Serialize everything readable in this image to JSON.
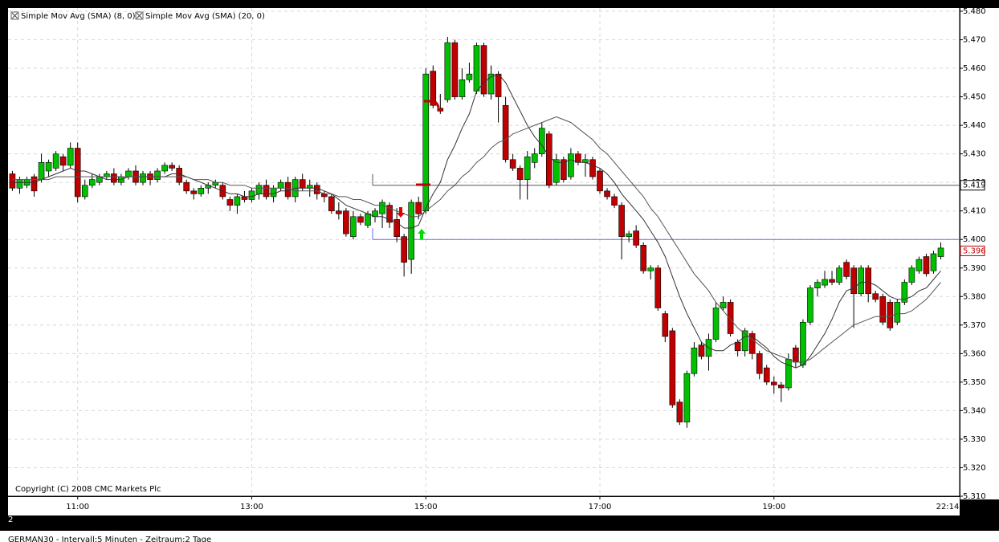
{
  "chart_data": {
    "type": "candlestick",
    "legend": [
      "Simple Mov Avg (SMA) (8, 0)",
      "Simple Mov Avg (SMA) (20, 0)"
    ],
    "copyright": "Copyright (C) 2008 CMC Markets Plc",
    "pane_number": "2",
    "footer": "GERMAN30 - Intervall:5 Minuten - Zeitraum:2 Tage",
    "cursor_time": "22:14",
    "ylim": [
      5.31,
      5.48
    ],
    "yticks": [
      {
        "value": 5.48,
        "label": "5.480"
      },
      {
        "value": 5.47,
        "label": "5.470"
      },
      {
        "value": 5.46,
        "label": "5.460"
      },
      {
        "value": 5.45,
        "label": "5.450"
      },
      {
        "value": 5.44,
        "label": "5.440"
      },
      {
        "value": 5.43,
        "label": "5.430"
      },
      {
        "value": 5.42,
        "label": "5.420"
      },
      {
        "value": 5.41,
        "label": "5.410"
      },
      {
        "value": 5.4,
        "label": "5.400"
      },
      {
        "value": 5.39,
        "label": "5.390"
      },
      {
        "value": 5.38,
        "label": "5.380"
      },
      {
        "value": 5.37,
        "label": "5.370"
      },
      {
        "value": 5.36,
        "label": "5.360"
      },
      {
        "value": 5.35,
        "label": "5.350"
      },
      {
        "value": 5.34,
        "label": "5.340"
      },
      {
        "value": 5.33,
        "label": "5.330"
      },
      {
        "value": 5.32,
        "label": "5.320"
      },
      {
        "value": 5.31,
        "label": "5.310"
      }
    ],
    "xlim": [
      "10:12",
      "21:08"
    ],
    "xticks": [
      "11:00",
      "13:00",
      "15:00",
      "17:00",
      "19:00"
    ],
    "grid": true,
    "levels": [
      {
        "value": 5.419,
        "label": "5.419",
        "color": "#555555"
      },
      {
        "value": 5.4,
        "color": "#6a6af0"
      }
    ],
    "last_price": {
      "value": 5.396,
      "label": "5.396",
      "color": "#c00000"
    },
    "up_color": "#00c000",
    "down_color": "#c00000",
    "x": [
      "10:15",
      "10:20",
      "10:25",
      "10:30",
      "10:35",
      "10:40",
      "10:45",
      "10:50",
      "10:55",
      "11:00",
      "11:05",
      "11:10",
      "11:15",
      "11:20",
      "11:25",
      "11:30",
      "11:35",
      "11:40",
      "11:45",
      "11:50",
      "11:55",
      "12:00",
      "12:05",
      "12:10",
      "12:15",
      "12:20",
      "12:25",
      "12:30",
      "12:35",
      "12:40",
      "12:45",
      "12:50",
      "12:55",
      "13:00",
      "13:05",
      "13:10",
      "13:15",
      "13:20",
      "13:25",
      "13:30",
      "13:35",
      "13:40",
      "13:45",
      "13:50",
      "13:55",
      "14:00",
      "14:05",
      "14:10",
      "14:15",
      "14:20",
      "14:25",
      "14:30",
      "14:35",
      "14:40",
      "14:45",
      "14:50",
      "14:55",
      "15:00",
      "15:05",
      "15:10",
      "15:15",
      "15:20",
      "15:25",
      "15:30",
      "15:35",
      "15:40",
      "15:45",
      "15:50",
      "15:55",
      "16:00",
      "16:05",
      "16:10",
      "16:15",
      "16:20",
      "16:25",
      "16:30",
      "16:35",
      "16:40",
      "16:45",
      "16:50",
      "16:55",
      "17:00",
      "17:05",
      "17:10",
      "17:15",
      "17:20",
      "17:25",
      "17:30",
      "17:35",
      "17:40",
      "17:45",
      "17:50",
      "17:55",
      "18:00",
      "18:05",
      "18:10",
      "18:15",
      "18:20",
      "18:25",
      "18:30",
      "18:35",
      "18:40",
      "18:45",
      "18:50",
      "18:55",
      "19:00",
      "19:05",
      "19:10",
      "19:15",
      "19:20",
      "19:25",
      "19:30",
      "19:35",
      "19:40",
      "19:45",
      "19:50",
      "19:55",
      "20:00",
      "20:05",
      "20:10",
      "20:15",
      "20:20",
      "20:25",
      "20:30",
      "20:35",
      "20:40",
      "20:45",
      "20:50",
      "20:55"
    ],
    "candles": [
      [
        5.423,
        5.424,
        5.417,
        5.418
      ],
      [
        5.418,
        5.422,
        5.416,
        5.421
      ],
      [
        5.419,
        5.422,
        5.418,
        5.421
      ],
      [
        5.422,
        5.423,
        5.415,
        5.417
      ],
      [
        5.421,
        5.43,
        5.42,
        5.427
      ],
      [
        5.424,
        5.428,
        5.422,
        5.427
      ],
      [
        5.425,
        5.431,
        5.424,
        5.43
      ],
      [
        5.429,
        5.43,
        5.424,
        5.426
      ],
      [
        5.426,
        5.434,
        5.425,
        5.432
      ],
      [
        5.432,
        5.434,
        5.413,
        5.415
      ],
      [
        5.415,
        5.421,
        5.414,
        5.419
      ],
      [
        5.419,
        5.423,
        5.418,
        5.421
      ],
      [
        5.42,
        5.423,
        5.419,
        5.422
      ],
      [
        5.422,
        5.424,
        5.421,
        5.423
      ],
      [
        5.423,
        5.425,
        5.419,
        5.42
      ],
      [
        5.42,
        5.423,
        5.419,
        5.422
      ],
      [
        5.422,
        5.425,
        5.421,
        5.424
      ],
      [
        5.424,
        5.426,
        5.419,
        5.42
      ],
      [
        5.42,
        5.424,
        5.419,
        5.423
      ],
      [
        5.423,
        5.424,
        5.419,
        5.421
      ],
      [
        5.421,
        5.425,
        5.42,
        5.424
      ],
      [
        5.424,
        5.427,
        5.423,
        5.426
      ],
      [
        5.426,
        5.427,
        5.424,
        5.425
      ],
      [
        5.425,
        5.426,
        5.419,
        5.42
      ],
      [
        5.42,
        5.421,
        5.416,
        5.417
      ],
      [
        5.417,
        5.418,
        5.414,
        5.416
      ],
      [
        5.416,
        5.419,
        5.415,
        5.418
      ],
      [
        5.418,
        5.42,
        5.416,
        5.419
      ],
      [
        5.419,
        5.421,
        5.418,
        5.42
      ],
      [
        5.419,
        5.42,
        5.414,
        5.415
      ],
      [
        5.414,
        5.415,
        5.41,
        5.412
      ],
      [
        5.412,
        5.416,
        5.409,
        5.415
      ],
      [
        5.415,
        5.417,
        5.413,
        5.414
      ],
      [
        5.414,
        5.418,
        5.413,
        5.417
      ],
      [
        5.416,
        5.42,
        5.414,
        5.419
      ],
      [
        5.419,
        5.421,
        5.414,
        5.415
      ],
      [
        5.415,
        5.419,
        5.413,
        5.418
      ],
      [
        5.418,
        5.421,
        5.417,
        5.42
      ],
      [
        5.42,
        5.422,
        5.414,
        5.415
      ],
      [
        5.415,
        5.422,
        5.413,
        5.421
      ],
      [
        5.421,
        5.423,
        5.417,
        5.418
      ],
      [
        5.418,
        5.421,
        5.415,
        5.419
      ],
      [
        5.419,
        5.42,
        5.414,
        5.416
      ],
      [
        5.416,
        5.417,
        5.413,
        5.415
      ],
      [
        5.415,
        5.416,
        5.409,
        5.41
      ],
      [
        5.41,
        5.413,
        5.407,
        5.409
      ],
      [
        5.41,
        5.411,
        5.401,
        5.402
      ],
      [
        5.401,
        5.41,
        5.4,
        5.408
      ],
      [
        5.408,
        5.409,
        5.405,
        5.406
      ],
      [
        5.405,
        5.41,
        5.404,
        5.409
      ],
      [
        5.408,
        5.411,
        5.406,
        5.41
      ],
      [
        5.409,
        5.414,
        5.404,
        5.413
      ],
      [
        5.412,
        5.413,
        5.404,
        5.406
      ],
      [
        5.407,
        5.411,
        5.399,
        5.401
      ],
      [
        5.401,
        5.402,
        5.387,
        5.392
      ],
      [
        5.393,
        5.414,
        5.388,
        5.413
      ],
      [
        5.413,
        5.415,
        5.407,
        5.409
      ],
      [
        5.41,
        5.46,
        5.409,
        5.458
      ],
      [
        5.459,
        5.461,
        5.446,
        5.447
      ],
      [
        5.446,
        5.451,
        5.444,
        5.445
      ],
      [
        5.449,
        5.471,
        5.448,
        5.469
      ],
      [
        5.469,
        5.47,
        5.449,
        5.45
      ],
      [
        5.45,
        5.46,
        5.449,
        5.456
      ],
      [
        5.456,
        5.462,
        5.455,
        5.458
      ],
      [
        5.452,
        5.469,
        5.451,
        5.468
      ],
      [
        5.468,
        5.469,
        5.45,
        5.451
      ],
      [
        5.451,
        5.461,
        5.449,
        5.458
      ],
      [
        5.458,
        5.459,
        5.441,
        5.45
      ],
      [
        5.447,
        5.45,
        5.427,
        5.428
      ],
      [
        5.428,
        5.43,
        5.424,
        5.425
      ],
      [
        5.425,
        5.426,
        5.414,
        5.421
      ],
      [
        5.421,
        5.431,
        5.414,
        5.429
      ],
      [
        5.427,
        5.432,
        5.425,
        5.43
      ],
      [
        5.43,
        5.441,
        5.429,
        5.439
      ],
      [
        5.437,
        5.438,
        5.418,
        5.419
      ],
      [
        5.42,
        5.43,
        5.419,
        5.428
      ],
      [
        5.428,
        5.429,
        5.42,
        5.421
      ],
      [
        5.422,
        5.432,
        5.421,
        5.43
      ],
      [
        5.43,
        5.431,
        5.426,
        5.427
      ],
      [
        5.427,
        5.43,
        5.422,
        5.428
      ],
      [
        5.428,
        5.429,
        5.421,
        5.422
      ],
      [
        5.424,
        5.425,
        5.416,
        5.417
      ],
      [
        5.417,
        5.418,
        5.414,
        5.415
      ],
      [
        5.415,
        5.416,
        5.411,
        5.412
      ],
      [
        5.412,
        5.413,
        5.393,
        5.401
      ],
      [
        5.401,
        5.403,
        5.399,
        5.402
      ],
      [
        5.403,
        5.405,
        5.397,
        5.398
      ],
      [
        5.398,
        5.399,
        5.388,
        5.389
      ],
      [
        5.389,
        5.391,
        5.386,
        5.39
      ],
      [
        5.39,
        5.391,
        5.375,
        5.376
      ],
      [
        5.374,
        5.375,
        5.364,
        5.366
      ],
      [
        5.368,
        5.369,
        5.341,
        5.342
      ],
      [
        5.343,
        5.344,
        5.335,
        5.336
      ],
      [
        5.336,
        5.354,
        5.334,
        5.353
      ],
      [
        5.353,
        5.364,
        5.352,
        5.362
      ],
      [
        5.363,
        5.364,
        5.358,
        5.359
      ],
      [
        5.359,
        5.367,
        5.354,
        5.365
      ],
      [
        5.365,
        5.378,
        5.364,
        5.376
      ],
      [
        5.376,
        5.38,
        5.375,
        5.378
      ],
      [
        5.378,
        5.379,
        5.366,
        5.367
      ],
      [
        5.364,
        5.365,
        5.359,
        5.361
      ],
      [
        5.361,
        5.369,
        5.359,
        5.368
      ],
      [
        5.367,
        5.368,
        5.358,
        5.36
      ],
      [
        5.36,
        5.361,
        5.351,
        5.353
      ],
      [
        5.355,
        5.356,
        5.349,
        5.35
      ],
      [
        5.35,
        5.352,
        5.346,
        5.349
      ],
      [
        5.349,
        5.35,
        5.343,
        5.348
      ],
      [
        5.348,
        5.36,
        5.347,
        5.358
      ],
      [
        5.362,
        5.363,
        5.355,
        5.357
      ],
      [
        5.356,
        5.372,
        5.355,
        5.371
      ],
      [
        5.371,
        5.384,
        5.37,
        5.383
      ],
      [
        5.383,
        5.386,
        5.38,
        5.385
      ],
      [
        5.384,
        5.389,
        5.383,
        5.386
      ],
      [
        5.386,
        5.389,
        5.384,
        5.385
      ],
      [
        5.385,
        5.391,
        5.384,
        5.39
      ],
      [
        5.392,
        5.393,
        5.386,
        5.387
      ],
      [
        5.39,
        5.391,
        5.369,
        5.381
      ],
      [
        5.381,
        5.391,
        5.38,
        5.39
      ],
      [
        5.39,
        5.391,
        5.378,
        5.381
      ],
      [
        5.381,
        5.382,
        5.378,
        5.379
      ],
      [
        5.38,
        5.381,
        5.37,
        5.371
      ],
      [
        5.378,
        5.379,
        5.368,
        5.369
      ],
      [
        5.371,
        5.379,
        5.37,
        5.378
      ],
      [
        5.378,
        5.386,
        5.377,
        5.385
      ],
      [
        5.385,
        5.391,
        5.384,
        5.39
      ],
      [
        5.389,
        5.394,
        5.388,
        5.393
      ],
      [
        5.394,
        5.395,
        5.387,
        5.388
      ],
      [
        5.389,
        5.396,
        5.388,
        5.395
      ],
      [
        5.394,
        5.399,
        5.393,
        5.397
      ]
    ],
    "series": [
      {
        "name": "Simple Mov Avg (SMA) (8, 0)",
        "color": "#333333",
        "values": [
          5.42,
          5.42,
          5.42,
          5.42,
          5.421,
          5.422,
          5.423,
          5.424,
          5.425,
          5.424,
          5.424,
          5.423,
          5.422,
          5.421,
          5.421,
          5.421,
          5.422,
          5.422,
          5.422,
          5.422,
          5.422,
          5.422,
          5.423,
          5.423,
          5.422,
          5.421,
          5.42,
          5.419,
          5.418,
          5.417,
          5.416,
          5.416,
          5.415,
          5.415,
          5.416,
          5.416,
          5.416,
          5.417,
          5.417,
          5.418,
          5.418,
          5.418,
          5.418,
          5.417,
          5.416,
          5.414,
          5.412,
          5.411,
          5.41,
          5.409,
          5.408,
          5.408,
          5.407,
          5.406,
          5.404,
          5.404,
          5.405,
          5.411,
          5.416,
          5.42,
          5.428,
          5.433,
          5.439,
          5.444,
          5.452,
          5.455,
          5.457,
          5.458,
          5.455,
          5.45,
          5.445,
          5.44,
          5.436,
          5.433,
          5.429,
          5.427,
          5.427,
          5.428,
          5.427,
          5.427,
          5.426,
          5.425,
          5.423,
          5.42,
          5.416,
          5.413,
          5.41,
          5.407,
          5.403,
          5.399,
          5.394,
          5.387,
          5.38,
          5.374,
          5.369,
          5.364,
          5.362,
          5.361,
          5.361,
          5.363,
          5.364,
          5.366,
          5.366,
          5.364,
          5.362,
          5.359,
          5.357,
          5.356,
          5.355,
          5.356,
          5.359,
          5.363,
          5.367,
          5.372,
          5.378,
          5.382,
          5.383,
          5.385,
          5.385,
          5.384,
          5.382,
          5.38,
          5.379,
          5.379,
          5.38,
          5.382,
          5.383,
          5.386,
          5.389
        ]
      },
      {
        "name": "Simple Mov Avg (SMA) (20, 0)",
        "color": "#555555",
        "values": [
          5.421,
          5.421,
          5.421,
          5.421,
          5.421,
          5.421,
          5.422,
          5.422,
          5.422,
          5.422,
          5.422,
          5.422,
          5.422,
          5.422,
          5.422,
          5.422,
          5.422,
          5.422,
          5.422,
          5.422,
          5.422,
          5.422,
          5.422,
          5.422,
          5.422,
          5.421,
          5.421,
          5.421,
          5.42,
          5.42,
          5.419,
          5.419,
          5.419,
          5.418,
          5.418,
          5.418,
          5.418,
          5.418,
          5.418,
          5.417,
          5.417,
          5.417,
          5.417,
          5.416,
          5.416,
          5.415,
          5.415,
          5.414,
          5.414,
          5.413,
          5.412,
          5.412,
          5.411,
          5.41,
          5.409,
          5.408,
          5.408,
          5.41,
          5.412,
          5.414,
          5.417,
          5.419,
          5.422,
          5.424,
          5.427,
          5.429,
          5.432,
          5.434,
          5.435,
          5.437,
          5.438,
          5.439,
          5.44,
          5.441,
          5.442,
          5.443,
          5.442,
          5.441,
          5.439,
          5.437,
          5.435,
          5.432,
          5.43,
          5.427,
          5.424,
          5.421,
          5.418,
          5.415,
          5.411,
          5.408,
          5.404,
          5.4,
          5.396,
          5.392,
          5.388,
          5.385,
          5.382,
          5.378,
          5.375,
          5.372,
          5.369,
          5.367,
          5.365,
          5.363,
          5.361,
          5.36,
          5.359,
          5.358,
          5.357,
          5.357,
          5.358,
          5.36,
          5.362,
          5.364,
          5.366,
          5.368,
          5.37,
          5.371,
          5.372,
          5.373,
          5.373,
          5.373,
          5.374,
          5.374,
          5.375,
          5.377,
          5.379,
          5.382,
          5.385
        ]
      }
    ]
  }
}
